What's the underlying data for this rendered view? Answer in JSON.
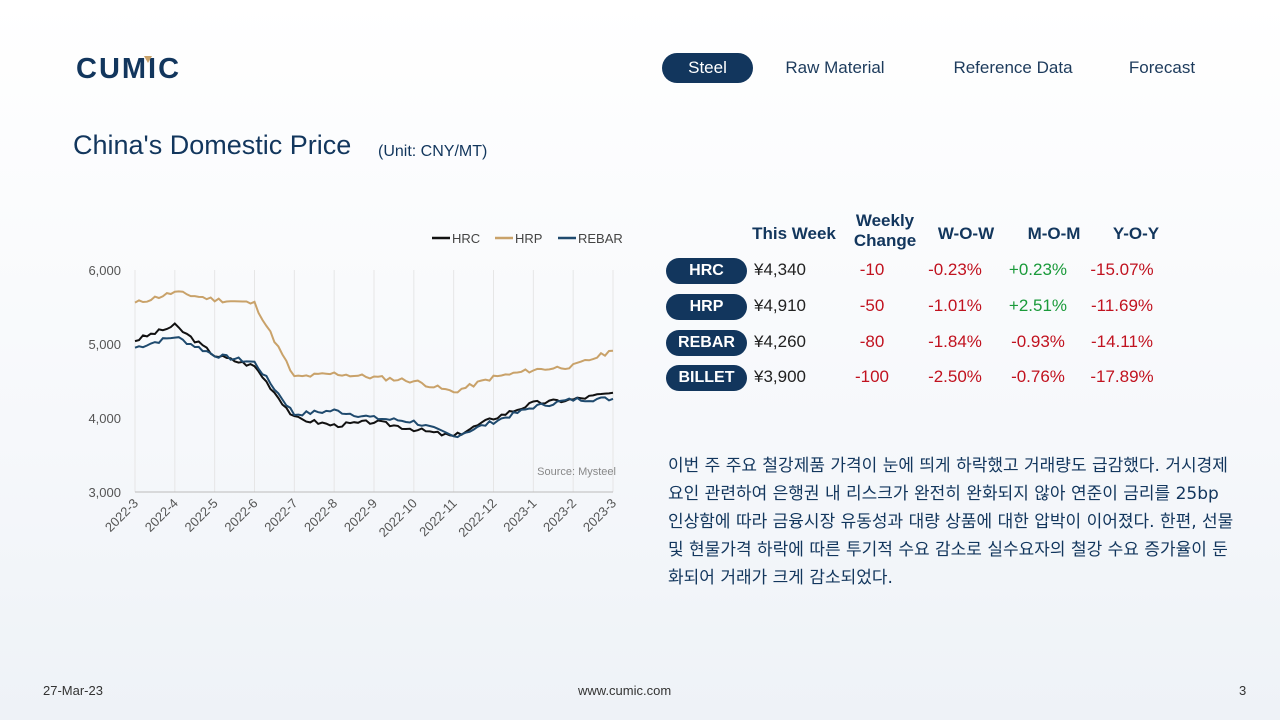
{
  "header": {
    "logo_text": "CUMIC",
    "nav": [
      "Steel",
      "Raw Material",
      "Reference Data",
      "Forecast"
    ],
    "active_tab": "Steel"
  },
  "title": "China's Domestic Price",
  "unit": "(Unit: CNY/MT)",
  "colors": {
    "brand": "#12365d",
    "hrc": "#111111",
    "hrp": "#c9a26a",
    "rebar": "#1f4a6e",
    "negative": "#c1121f",
    "positive": "#1a9a3a"
  },
  "chart_data": {
    "type": "line",
    "source": "Source: Mysteel",
    "ylim": [
      3000,
      6000
    ],
    "yticks": [
      "6,000",
      "5,000",
      "4,000",
      "3,000"
    ],
    "legend_position": "top-right",
    "categories": [
      "2022-3",
      "2022-4",
      "2022-5",
      "2022-6",
      "2022-7",
      "2022-8",
      "2022-9",
      "2022-10",
      "2022-11",
      "2022-12",
      "2023-1",
      "2023-2",
      "2023-3"
    ],
    "series": [
      {
        "name": "HRC",
        "values": [
          5050,
          5250,
          4850,
          4700,
          4000,
          3900,
          3950,
          3850,
          3750,
          4000,
          4200,
          4250,
          4340
        ]
      },
      {
        "name": "HRP",
        "values": [
          5550,
          5700,
          5600,
          5550,
          4550,
          4600,
          4550,
          4500,
          4350,
          4550,
          4650,
          4700,
          4910
        ]
      },
      {
        "name": "REBAR",
        "values": [
          4950,
          5100,
          4850,
          4750,
          4050,
          4100,
          4000,
          3950,
          3750,
          3950,
          4150,
          4250,
          4260
        ]
      }
    ]
  },
  "table": {
    "headers": [
      "This Week",
      "Weekly Change",
      "W-O-W",
      "M-O-M",
      "Y-O-Y"
    ],
    "rows": [
      {
        "name": "HRC",
        "price": "¥4,340",
        "change": "-10",
        "wow": "-0.23%",
        "mom": "+0.23%",
        "yoy": "-15.07%"
      },
      {
        "name": "HRP",
        "price": "¥4,910",
        "change": "-50",
        "wow": "-1.01%",
        "mom": "+2.51%",
        "yoy": "-11.69%"
      },
      {
        "name": "REBAR",
        "price": "¥4,260",
        "change": "-80",
        "wow": "-1.84%",
        "mom": "-0.93%",
        "yoy": "-14.11%"
      },
      {
        "name": "BILLET",
        "price": "¥3,900",
        "change": "-100",
        "wow": "-2.50%",
        "mom": "-0.76%",
        "yoy": "-17.89%"
      }
    ]
  },
  "description": "이번 주 주요 철강제품 가격이 눈에 띄게 하락했고 거래량도 급감했다. 거시경제 요인 관련하여 은행권 내 리스크가 완전히 완화되지 않아 연준이 금리를 25bp 인상함에 따라 금융시장 유동성과 대량 상품에 대한 압박이 이어졌다. 한편, 선물 및 현물가격 하락에 따른 투기적 수요 감소로 실수요자의 철강 수요 증가율이 둔화되어 거래가 크게 감소되었다.",
  "footer": {
    "date": "27-Mar-23",
    "website": "www.cumic.com",
    "page": "3"
  }
}
